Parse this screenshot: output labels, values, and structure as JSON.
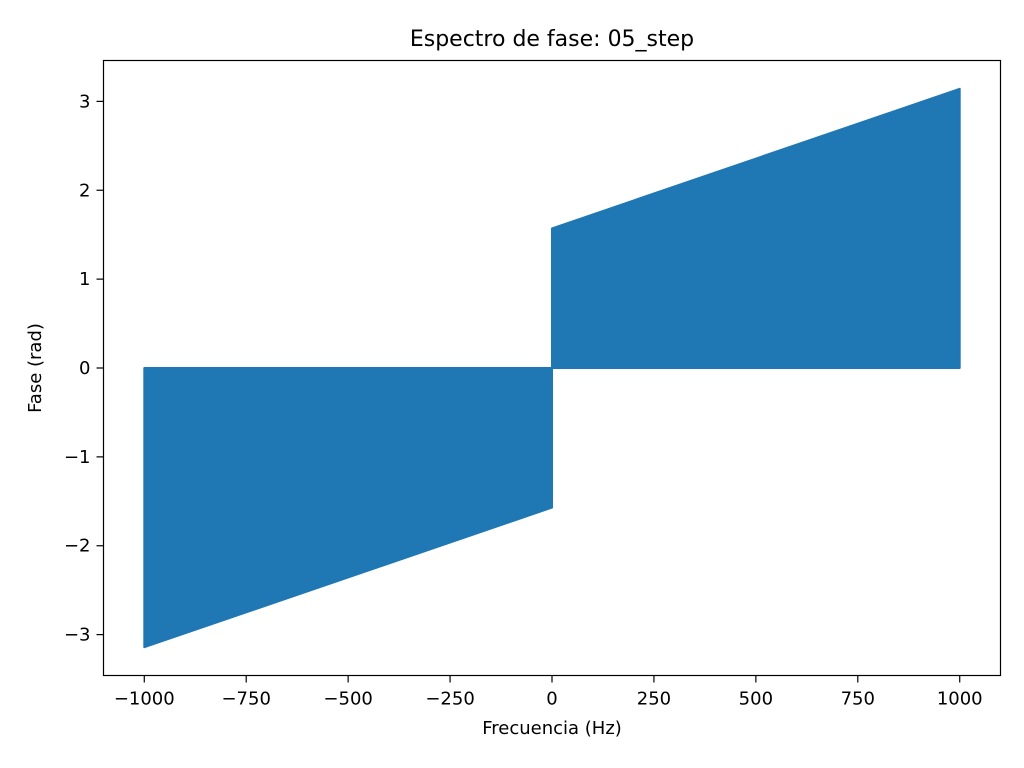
{
  "chart_data": {
    "type": "area",
    "title": "Espectro de fase: 05_step",
    "xlabel": "Frecuencia (Hz)",
    "ylabel": "Fase (rad)",
    "xlim": [
      -1100,
      1100
    ],
    "ylim": [
      -3.46,
      3.46
    ],
    "x_ticks": [
      -1000,
      -750,
      -500,
      -250,
      0,
      250,
      500,
      750,
      1000
    ],
    "x_tick_labels": [
      "−1000",
      "−750",
      "−500",
      "−250",
      "0",
      "250",
      "500",
      "750",
      "1000"
    ],
    "y_ticks": [
      -3,
      -2,
      -1,
      0,
      1,
      2,
      3
    ],
    "y_tick_labels": [
      "−3",
      "−2",
      "−1",
      "0",
      "1",
      "2",
      "3"
    ],
    "grid": false,
    "series": [
      {
        "color": "#1f77b4",
        "regions": [
          {
            "x": [
              -1000,
              0
            ],
            "upper": [
              0,
              0
            ],
            "lower": [
              -3.14159,
              -1.5708
            ]
          },
          {
            "x": [
              0,
              1000
            ],
            "upper": [
              1.5708,
              3.14159
            ],
            "lower": [
              0,
              0
            ]
          }
        ]
      }
    ]
  }
}
